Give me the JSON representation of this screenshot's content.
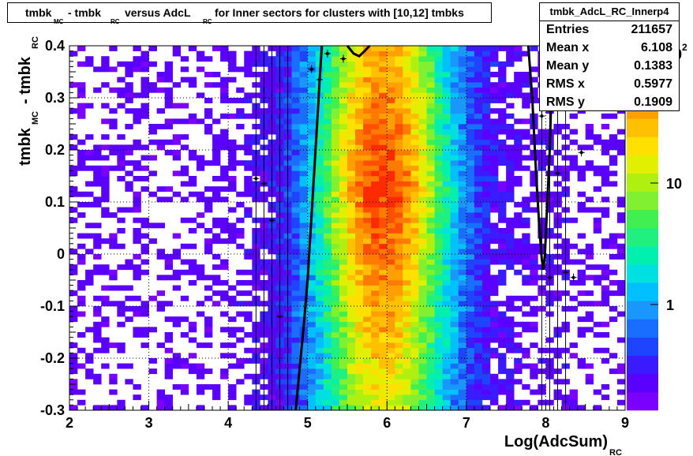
{
  "title": {
    "parts": [
      {
        "text": "tmbk",
        "sub": "MC"
      },
      {
        "text": "- tmbk",
        "sub": "RC"
      },
      {
        "text": "versus AdcL",
        "sub": "RC"
      },
      {
        "text": "for Inner sectors for clusters with [10,12] tmbks",
        "sub": ""
      }
    ]
  },
  "stats": {
    "name": "tmbk_AdcL_RC_Innerp4",
    "rows": [
      {
        "key": "Entries",
        "value": "211657"
      },
      {
        "key": "Mean x",
        "value": "6.108"
      },
      {
        "key": "Mean y",
        "value": "0.1383"
      },
      {
        "key": "RMS x",
        "value": "0.5977"
      },
      {
        "key": "RMS y",
        "value": "0.1909"
      }
    ]
  },
  "chart_data": {
    "type": "heatmap",
    "xlabel": "Log(AdcSum)",
    "xlabel_sub": "RC",
    "ylabel": "tmbk",
    "ylabel_sub1": "MC",
    "ylabel_mid": "- tmbk",
    "ylabel_sub2": "RC",
    "xlim": [
      2,
      9
    ],
    "ylim": [
      -0.3,
      0.4
    ],
    "x_ticks": [
      "2",
      "3",
      "4",
      "5",
      "6",
      "7",
      "8",
      "9"
    ],
    "y_ticks": [
      "-0.3",
      "-0.2",
      "-0.1",
      "0",
      "0.1",
      "0.2",
      "0.3",
      "0.4"
    ],
    "z_scale": "log",
    "z_ticks": [
      "1",
      "10",
      "10"
    ],
    "z_tick_top_exponent": "2",
    "grid": true,
    "x_distribution": {
      "center": 5.95,
      "width": 0.62,
      "peak_ratio": 300
    },
    "contour_left_x": [
      [
        4.85,
        -0.3
      ],
      [
        4.9,
        -0.22
      ],
      [
        4.95,
        -0.14
      ],
      [
        5.0,
        -0.05
      ],
      [
        5.04,
        0.05
      ],
      [
        5.08,
        0.15
      ],
      [
        5.12,
        0.25
      ],
      [
        5.15,
        0.33
      ],
      [
        5.18,
        0.4
      ]
    ],
    "contour_top_x": [
      [
        5.5,
        0.4
      ],
      [
        5.58,
        0.385
      ],
      [
        5.65,
        0.38
      ],
      [
        5.72,
        0.39
      ],
      [
        5.78,
        0.4
      ]
    ],
    "contour_right_x": [
      [
        7.78,
        0.4
      ],
      [
        7.83,
        0.3
      ],
      [
        7.88,
        0.15
      ],
      [
        7.92,
        0.05
      ],
      [
        7.95,
        -0.01
      ],
      [
        7.97,
        -0.03
      ],
      [
        7.99,
        0.0
      ],
      [
        8.02,
        0.1
      ],
      [
        8.05,
        0.2
      ],
      [
        8.07,
        0.3
      ],
      [
        8.09,
        0.4
      ]
    ],
    "profile_points": [
      [
        4.35,
        0.145
      ],
      [
        4.45,
        0.135
      ],
      [
        4.55,
        0.065
      ],
      [
        4.65,
        -0.12
      ],
      [
        5.05,
        0.355
      ],
      [
        5.15,
        0.335
      ],
      [
        5.25,
        0.385
      ],
      [
        5.45,
        0.375
      ],
      [
        7.95,
        0.265
      ],
      [
        8.05,
        -0.045
      ],
      [
        8.15,
        0.155
      ],
      [
        8.25,
        -0.035
      ],
      [
        8.35,
        -0.045
      ],
      [
        8.45,
        0.195
      ],
      [
        8.55,
        0.385
      ]
    ],
    "vertical_lines_x": [
      4.35,
      4.45,
      4.55,
      4.65,
      4.75,
      7.95,
      8.05,
      8.15,
      8.25
    ]
  }
}
